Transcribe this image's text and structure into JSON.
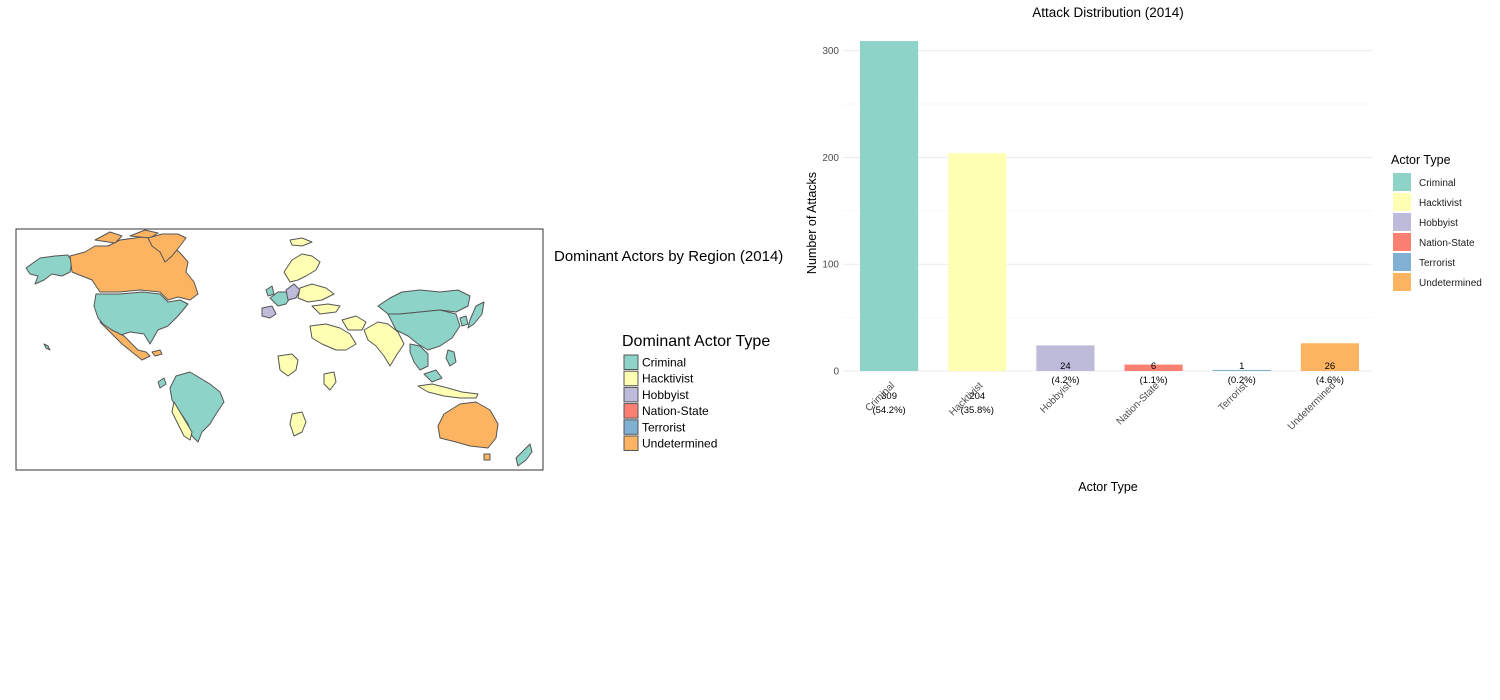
{
  "colors": {
    "Criminal": "#8DD3C7",
    "Hacktivist": "#FFFFB3",
    "Hobbyist": "#BEBADA",
    "Nation-State": "#FB8072",
    "Terrorist": "#80B1D3",
    "Undetermined": "#FDB462"
  },
  "map": {
    "title": "Dominant Actors by Region (2014)",
    "legend_title": "Dominant Actor Type",
    "legend_items": [
      "Criminal",
      "Hacktivist",
      "Hobbyist",
      "Nation-State",
      "Terrorist",
      "Undetermined"
    ],
    "regions": [
      {
        "name": "North America",
        "actor": "Criminal"
      },
      {
        "name": "Canada",
        "actor": "Undetermined"
      },
      {
        "name": "Greenland",
        "actor": "Undetermined"
      },
      {
        "name": "Alaska",
        "actor": "Criminal"
      },
      {
        "name": "Mexico",
        "actor": "Undetermined"
      },
      {
        "name": "Brazil",
        "actor": "Criminal"
      },
      {
        "name": "South America West",
        "actor": "Hacktivist"
      },
      {
        "name": "Western Europe",
        "actor": "Criminal"
      },
      {
        "name": "Central Europe",
        "actor": "Hobbyist"
      },
      {
        "name": "Northern Europe",
        "actor": "Hacktivist"
      },
      {
        "name": "Eastern Europe",
        "actor": "Hacktivist"
      },
      {
        "name": "Middle East",
        "actor": "Hacktivist"
      },
      {
        "name": "South Asia",
        "actor": "Hacktivist"
      },
      {
        "name": "China",
        "actor": "Criminal"
      },
      {
        "name": "Japan",
        "actor": "Criminal"
      },
      {
        "name": "Southeast Asia",
        "actor": "Criminal"
      },
      {
        "name": "Indonesia",
        "actor": "Hacktivist"
      },
      {
        "name": "Africa",
        "actor": "Hacktivist"
      },
      {
        "name": "Australia",
        "actor": "Undetermined"
      },
      {
        "name": "New Zealand",
        "actor": "Criminal"
      }
    ]
  },
  "chart_data": {
    "type": "bar",
    "title": "Attack Distribution (2014)",
    "xlabel": "Actor Type",
    "ylabel": "Number of Attacks",
    "categories": [
      "Criminal",
      "Hacktivist",
      "Hobbyist",
      "Nation-State",
      "Terrorist",
      "Undetermined"
    ],
    "values": [
      309,
      204,
      24,
      6,
      1,
      26
    ],
    "percent_labels": [
      "(54.2%)",
      "(35.8%)",
      "(4.2%)",
      "(1.1%)",
      "(0.2%)",
      "(4.6%)"
    ],
    "ylim": [
      0,
      310
    ],
    "yticks": [
      0,
      100,
      200,
      300
    ],
    "grid": true,
    "legend_title": "Actor Type",
    "legend_position": "right"
  }
}
